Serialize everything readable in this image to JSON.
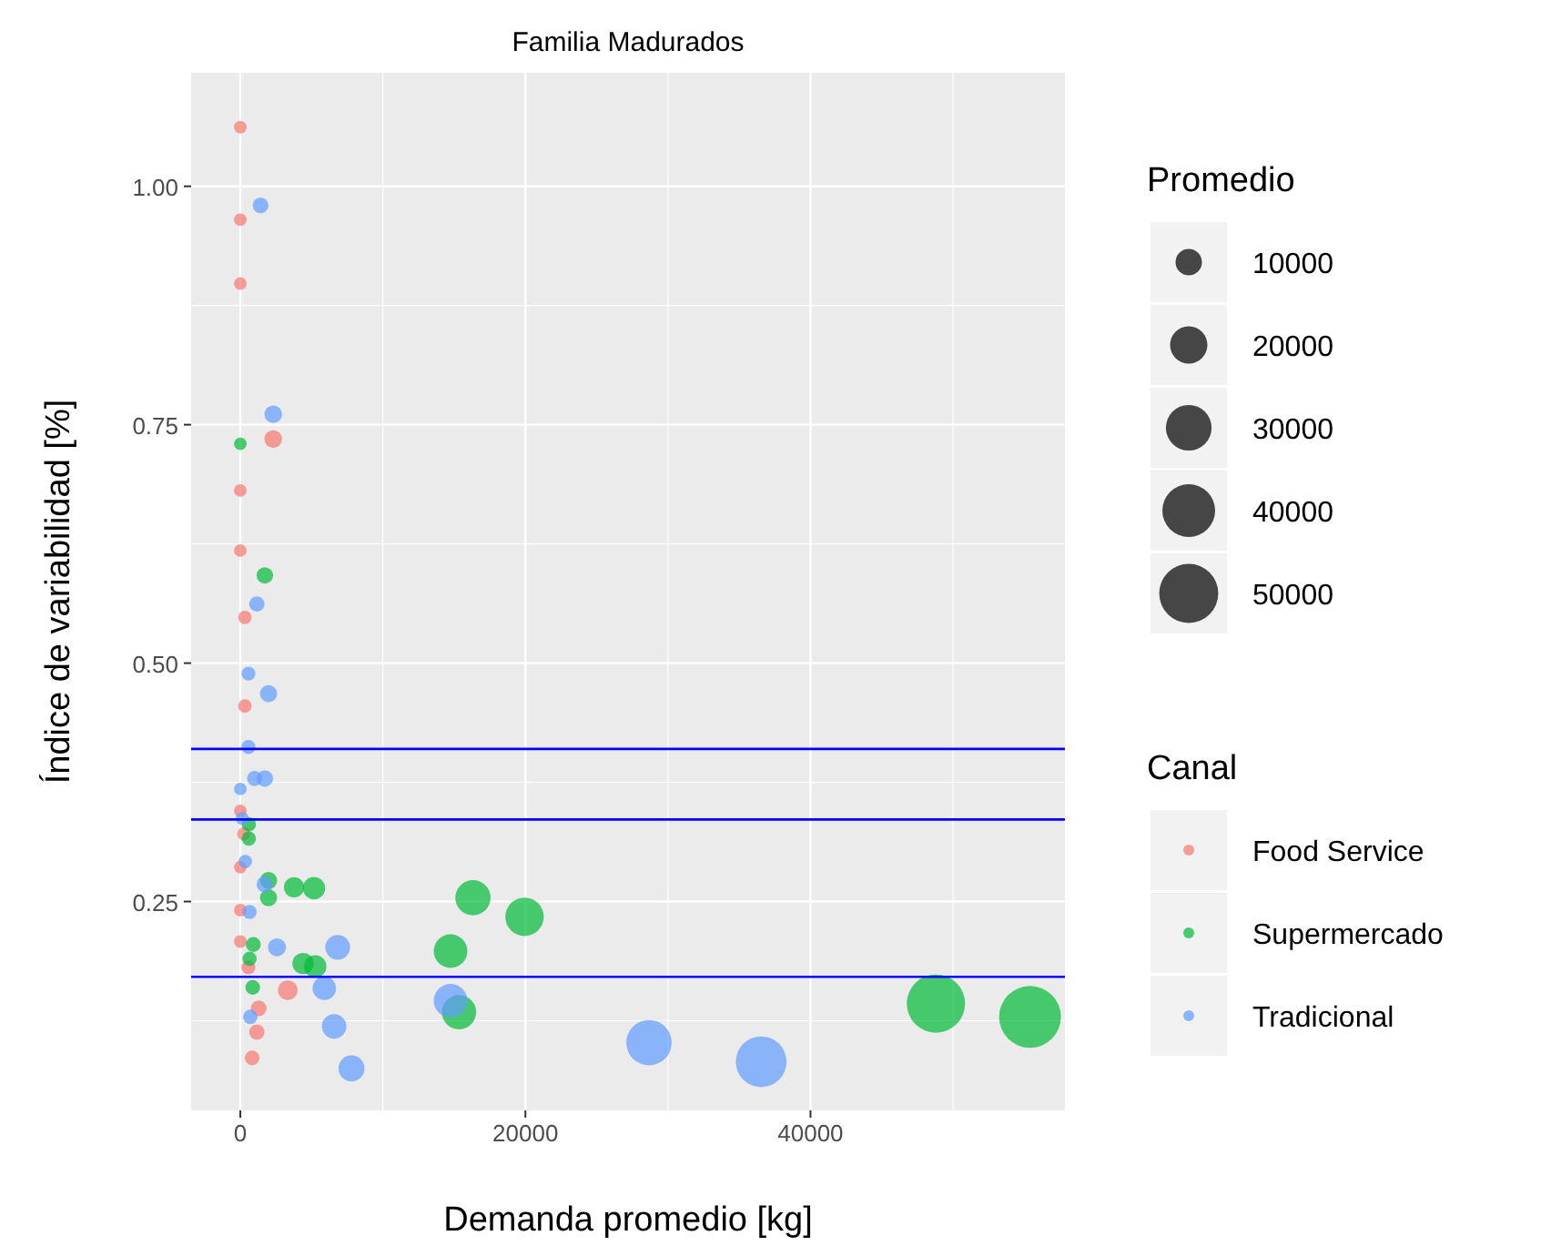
{
  "chart_data": {
    "type": "bubble",
    "title": "Familia Madurados",
    "xlabel": "Demanda promedio [kg]",
    "ylabel": "Índice de variabilidad [%]",
    "legend_title": "Canal",
    "annotations": [
      "Promedio"
    ],
    "xlim": [
      -3450,
      57850
    ],
    "ylim": [
      0.031,
      1.119
    ],
    "xticks": [
      0,
      20000,
      40000
    ],
    "yticks": [
      0.25,
      {
        "value": 0.5,
        "label": "0.50"
      },
      0.75,
      {
        "value": 1,
        "label": "1.00"
      }
    ],
    "grid": true,
    "legend": "right",
    "marker": "circle",
    "size_legend": [
      10000,
      20000,
      30000,
      40000,
      50000
    ],
    "ref_lines": [
      {
        "axis": "y",
        "value": 0.41,
        "color": "#0000ff"
      },
      {
        "axis": "y",
        "value": 0.336,
        "color": "#0000ff"
      },
      {
        "axis": "y",
        "value": 0.171,
        "color": "#0000ff"
      }
    ],
    "series": [
      {
        "name": "Food Service",
        "color": "#f8766d",
        "x": [
          0,
          0,
          0,
          2310,
          0,
          0,
          320,
          320,
          0,
          250,
          0,
          0,
          0,
          570,
          3330,
          1290,
          1160,
          830
        ],
        "values": [
          1.062,
          0.965,
          0.898,
          0.735,
          0.681,
          0.618,
          0.548,
          0.455,
          0.345,
          0.321,
          0.286,
          0.241,
          0.208,
          0.181,
          0.157,
          0.138,
          0.113,
          0.086
        ],
        "sizes": [
          2300,
          2300,
          2300,
          4500,
          2300,
          2300,
          2600,
          2600,
          2300,
          2500,
          2300,
          2300,
          2300,
          2800,
          5500,
          3500,
          3400,
          3100
        ]
      },
      {
        "name": "Supermercado",
        "color": "#00ba38",
        "x": [
          0,
          1720,
          600,
          600,
          1980,
          1980,
          3770,
          5170,
          16320,
          19940,
          910,
          14750,
          650,
          4400,
          5250,
          870,
          15340,
          48800,
          55400
        ],
        "values": [
          0.73,
          0.592,
          0.331,
          0.316,
          0.272,
          0.254,
          0.265,
          0.264,
          0.254,
          0.234,
          0.205,
          0.198,
          0.19,
          0.185,
          0.182,
          0.16,
          0.134,
          0.143,
          0.129
        ],
        "sizes": [
          2300,
          3900,
          2900,
          2900,
          4200,
          4200,
          5900,
          7200,
          17800,
          21200,
          3200,
          16300,
          2900,
          6500,
          7300,
          3100,
          16900,
          48700,
          54900
        ]
      },
      {
        "name": "Tradicional",
        "color": "#619cff",
        "x": [
          1420,
          2310,
          1160,
          570,
          1980,
          570,
          1000,
          1720,
          0,
          140,
          350,
          1720,
          650,
          2570,
          6830,
          5890,
          14750,
          700,
          6580,
          7800,
          28670,
          36540
        ],
        "values": [
          0.98,
          0.761,
          0.562,
          0.489,
          0.468,
          0.412,
          0.379,
          0.379,
          0.368,
          0.337,
          0.292,
          0.268,
          0.239,
          0.202,
          0.202,
          0.159,
          0.146,
          0.129,
          0.119,
          0.075,
          0.102,
          0.082
        ],
        "sizes": [
          3600,
          4500,
          3400,
          2800,
          4200,
          2800,
          3300,
          3900,
          2300,
          2400,
          2600,
          3900,
          2900,
          4700,
          8800,
          7900,
          16300,
          3000,
          8600,
          9700,
          29500,
          37000
        ]
      }
    ]
  }
}
